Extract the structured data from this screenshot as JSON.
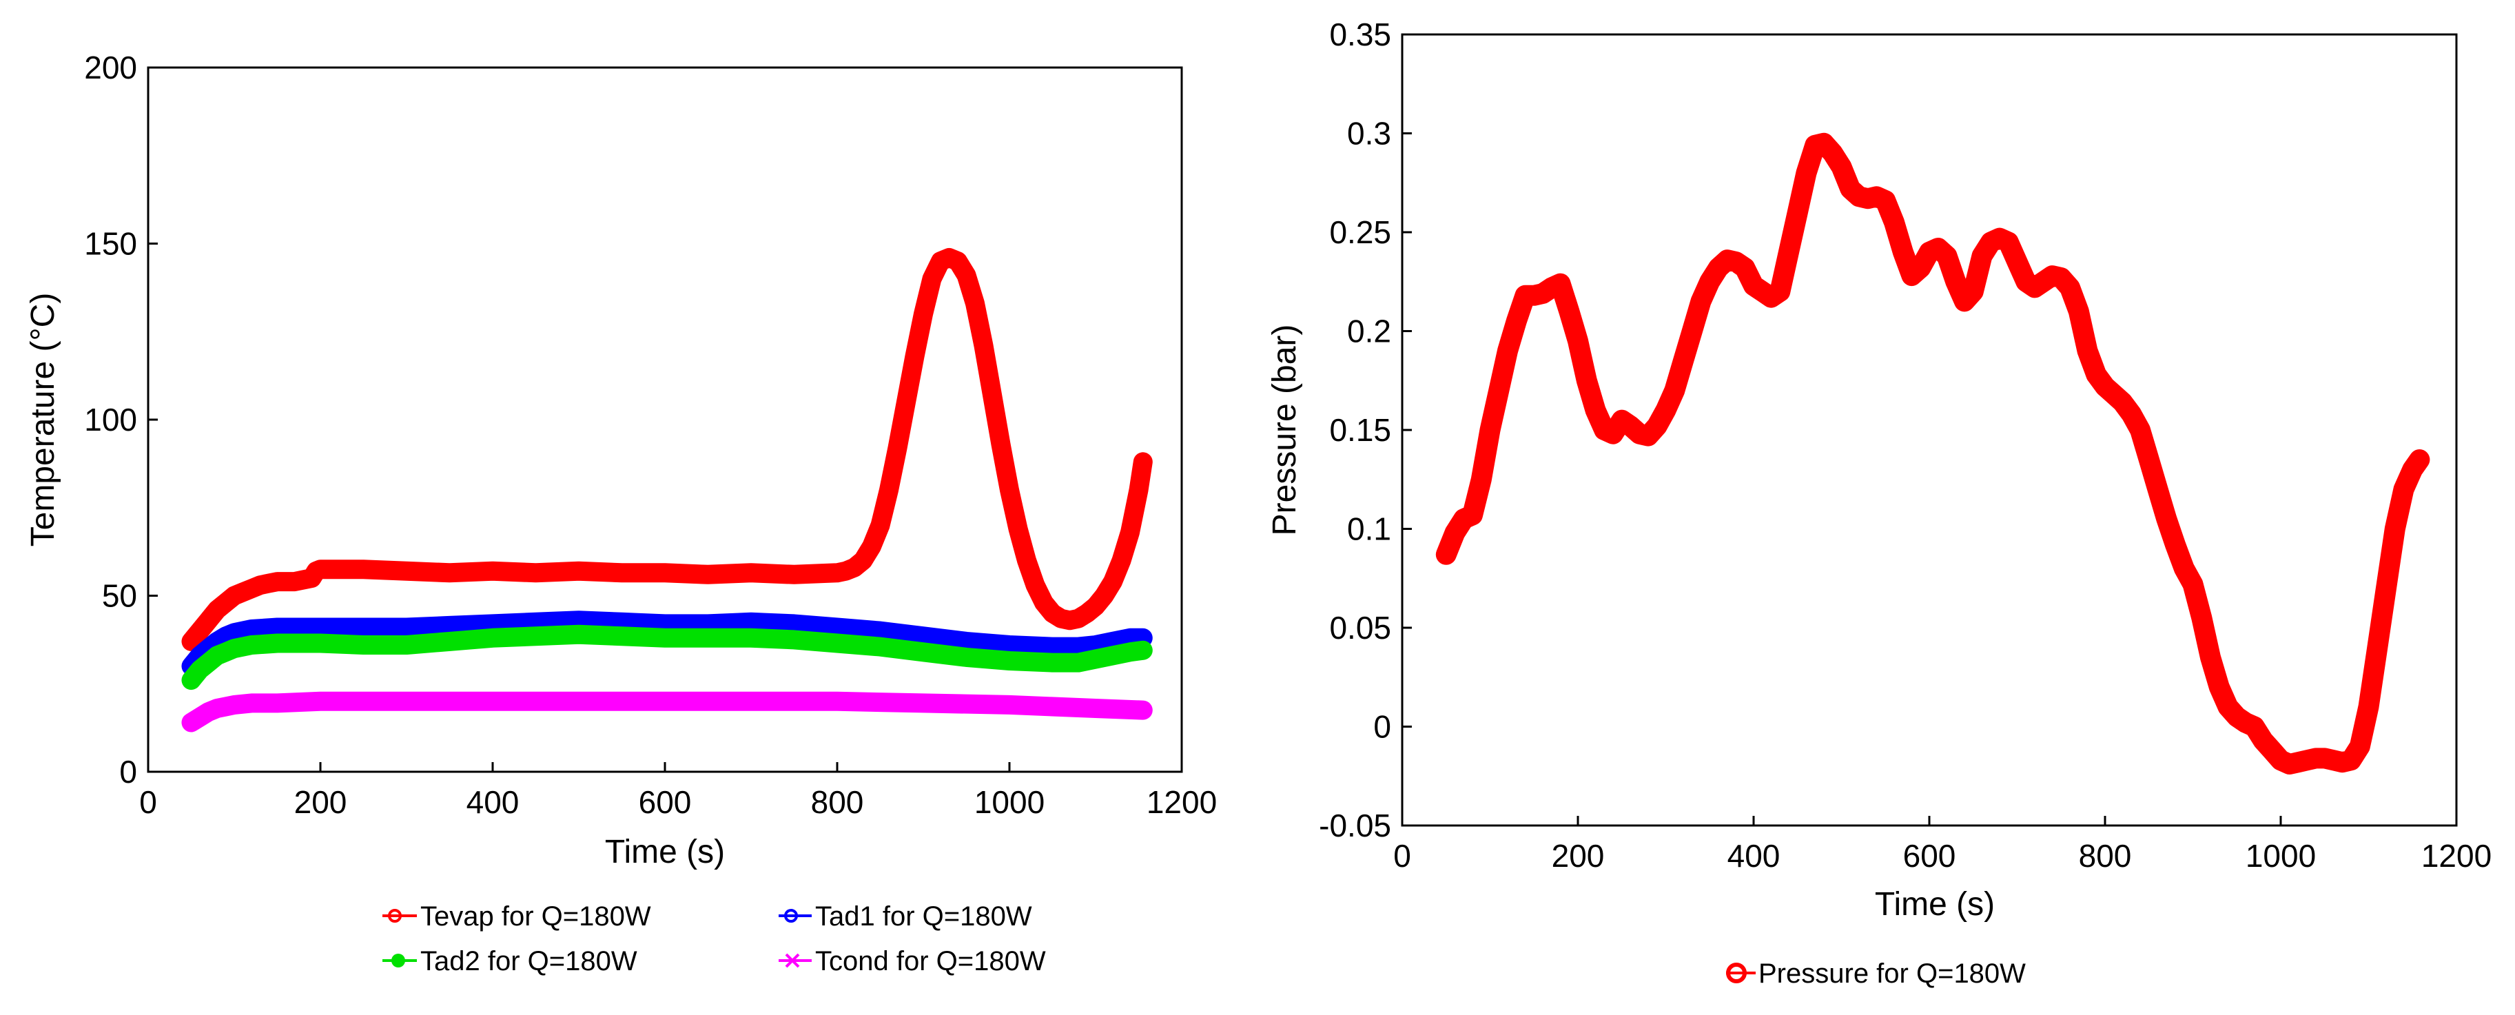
{
  "chart_data": [
    {
      "type": "line",
      "title": "",
      "xlabel": "Time (s)",
      "ylabel": "Temperature  (°C)",
      "xlim": [
        0,
        1200
      ],
      "ylim": [
        0,
        200
      ],
      "xticks": [
        "0",
        "200",
        "400",
        "600",
        "800",
        "1000",
        "1200"
      ],
      "yticks": [
        "0",
        "50",
        "100",
        "150",
        "200"
      ],
      "grid": false,
      "legend_position": "bottom",
      "series": [
        {
          "name": "Tevap for Q=180W",
          "color": "#ff0000",
          "marker": "circle",
          "x": [
            50,
            60,
            70,
            80,
            90,
            100,
            110,
            120,
            130,
            140,
            150,
            160,
            170,
            180,
            190,
            195,
            200,
            250,
            300,
            350,
            400,
            450,
            500,
            550,
            600,
            650,
            700,
            750,
            800,
            810,
            820,
            830,
            840,
            850,
            860,
            870,
            880,
            890,
            900,
            910,
            920,
            930,
            940,
            950,
            960,
            970,
            980,
            990,
            1000,
            1010,
            1020,
            1030,
            1040,
            1050,
            1060,
            1070,
            1080,
            1090,
            1100,
            1110,
            1120,
            1130,
            1140,
            1150,
            1155
          ],
          "y": [
            37,
            40,
            43,
            46,
            48,
            50,
            51,
            52,
            53,
            53.5,
            54,
            54,
            54,
            54.5,
            55,
            57,
            57.5,
            57.5,
            57,
            56.5,
            57,
            56.5,
            57,
            56.5,
            56.5,
            56,
            56.5,
            56,
            56.5,
            57,
            58,
            60,
            64,
            70,
            80,
            92,
            105,
            118,
            130,
            140,
            145,
            146,
            145,
            141,
            133,
            121,
            107,
            93,
            80,
            69,
            60,
            53,
            48,
            45,
            43.5,
            43,
            43.5,
            45,
            47,
            50,
            54,
            60,
            68,
            80,
            88
          ]
        },
        {
          "name": "Tad1 for Q=180W",
          "color": "#0000ff",
          "marker": "circle",
          "x": [
            50,
            60,
            70,
            80,
            90,
            100,
            120,
            150,
            200,
            250,
            300,
            350,
            400,
            450,
            500,
            550,
            600,
            650,
            700,
            750,
            800,
            850,
            900,
            950,
            1000,
            1050,
            1080,
            1100,
            1120,
            1140,
            1155
          ],
          "y": [
            30,
            33,
            35,
            37,
            38.5,
            39.5,
            40.5,
            41,
            41,
            41,
            41,
            41.5,
            42,
            42.5,
            43,
            42.5,
            42,
            42,
            42.5,
            42,
            41,
            40,
            38.5,
            37,
            36,
            35.5,
            35.5,
            36,
            37,
            38,
            38
          ]
        },
        {
          "name": "Tad2 for Q=180W",
          "color": "#00e000",
          "marker": "dot",
          "x": [
            50,
            60,
            70,
            80,
            90,
            100,
            120,
            150,
            200,
            250,
            300,
            350,
            400,
            450,
            500,
            550,
            600,
            650,
            700,
            750,
            800,
            850,
            900,
            950,
            1000,
            1050,
            1080,
            1100,
            1120,
            1140,
            1155
          ],
          "y": [
            26,
            29,
            31,
            33,
            34,
            35,
            36,
            36.5,
            36.5,
            36,
            36,
            37,
            38,
            38.5,
            39,
            38.5,
            38,
            38,
            38,
            37.5,
            36.5,
            35.5,
            34,
            32.5,
            31.5,
            31,
            31,
            32,
            33,
            34,
            34.5
          ]
        },
        {
          "name": "Tcond for Q=180W",
          "color": "#ff00ff",
          "marker": "x",
          "x": [
            50,
            60,
            70,
            80,
            90,
            100,
            120,
            150,
            200,
            300,
            400,
            500,
            600,
            700,
            800,
            900,
            1000,
            1100,
            1155
          ],
          "y": [
            14,
            15.5,
            17,
            18,
            18.5,
            19,
            19.5,
            19.5,
            20,
            20,
            20,
            20,
            20,
            20,
            20,
            19.5,
            19,
            18,
            17.5
          ]
        }
      ]
    },
    {
      "type": "line",
      "title": "",
      "xlabel": "Time (s)",
      "ylabel": "Pressure (bar)",
      "xlim": [
        0,
        1200
      ],
      "ylim": [
        -0.05,
        0.35
      ],
      "xticks": [
        "0",
        "200",
        "400",
        "600",
        "800",
        "1000",
        "1200"
      ],
      "yticks": [
        "-0.05",
        "0",
        "0.05",
        "0.1",
        "0.15",
        "0.2",
        "0.25",
        "0.3",
        "0.35"
      ],
      "grid": false,
      "legend_position": "bottom",
      "series": [
        {
          "name": "Pressure for Q=180W",
          "color": "#ff0000",
          "marker": "circle",
          "x": [
            50,
            60,
            70,
            80,
            90,
            100,
            110,
            120,
            130,
            140,
            150,
            160,
            170,
            180,
            190,
            200,
            210,
            220,
            230,
            240,
            250,
            260,
            270,
            280,
            290,
            300,
            310,
            320,
            330,
            340,
            350,
            360,
            370,
            380,
            390,
            400,
            410,
            420,
            430,
            440,
            450,
            460,
            470,
            480,
            490,
            500,
            510,
            520,
            530,
            540,
            550,
            560,
            570,
            580,
            590,
            600,
            610,
            620,
            630,
            640,
            650,
            660,
            670,
            680,
            690,
            700,
            710,
            720,
            730,
            740,
            750,
            760,
            770,
            780,
            790,
            800,
            810,
            820,
            830,
            840,
            850,
            860,
            870,
            880,
            890,
            900,
            910,
            920,
            930,
            940,
            950,
            960,
            970,
            980,
            990,
            1000,
            1010,
            1020,
            1030,
            1040,
            1050,
            1060,
            1070,
            1080,
            1090,
            1100,
            1110,
            1120,
            1130,
            1140,
            1150,
            1158
          ],
          "y": [
            0.087,
            0.098,
            0.105,
            0.107,
            0.125,
            0.15,
            0.17,
            0.19,
            0.205,
            0.218,
            0.218,
            0.219,
            0.222,
            0.224,
            0.21,
            0.195,
            0.175,
            0.16,
            0.15,
            0.148,
            0.155,
            0.152,
            0.148,
            0.147,
            0.152,
            0.16,
            0.17,
            0.185,
            0.2,
            0.215,
            0.225,
            0.232,
            0.236,
            0.235,
            0.232,
            0.223,
            0.22,
            0.217,
            0.22,
            0.24,
            0.26,
            0.28,
            0.294,
            0.295,
            0.29,
            0.283,
            0.272,
            0.268,
            0.267,
            0.268,
            0.266,
            0.255,
            0.24,
            0.228,
            0.232,
            0.24,
            0.242,
            0.238,
            0.225,
            0.215,
            0.22,
            0.238,
            0.245,
            0.247,
            0.245,
            0.235,
            0.225,
            0.222,
            0.225,
            0.228,
            0.227,
            0.222,
            0.21,
            0.19,
            0.178,
            0.172,
            0.168,
            0.164,
            0.158,
            0.15,
            0.135,
            0.12,
            0.105,
            0.092,
            0.08,
            0.072,
            0.055,
            0.035,
            0.02,
            0.01,
            0.005,
            0.002,
            0.0,
            -0.007,
            -0.012,
            -0.017,
            -0.019,
            -0.018,
            -0.017,
            -0.016,
            -0.016,
            -0.017,
            -0.018,
            -0.017,
            -0.01,
            0.01,
            0.04,
            0.07,
            0.1,
            0.12,
            0.13,
            0.135
          ]
        }
      ]
    }
  ]
}
